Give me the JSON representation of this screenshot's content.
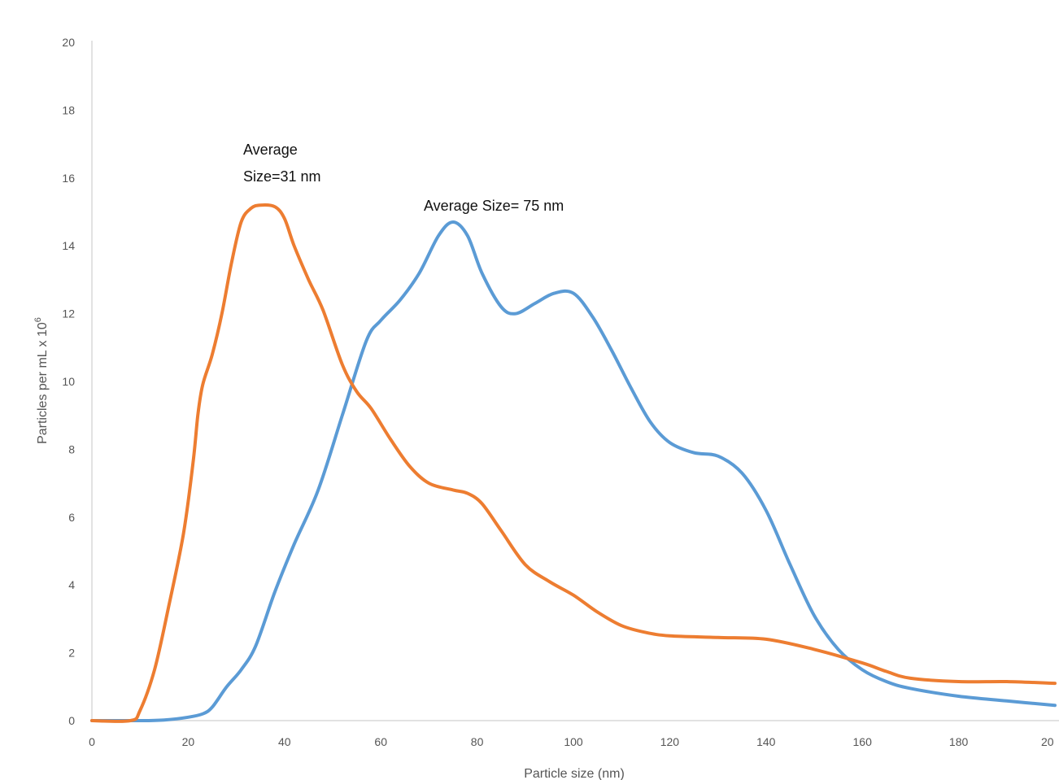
{
  "chart_data": {
    "type": "line",
    "title": "",
    "xlabel": "Particle size (nm)",
    "ylabel": "Particles per mL x 10",
    "ylabel_sup": "6",
    "xlim": [
      0,
      200
    ],
    "ylim": [
      0,
      20
    ],
    "x_ticks": [
      "0",
      "20",
      "40",
      "60",
      "80",
      "100",
      "120",
      "140",
      "160",
      "180",
      "20"
    ],
    "y_ticks": [
      "0",
      "2",
      "4",
      "6",
      "8",
      "10",
      "12",
      "14",
      "16",
      "18",
      "20"
    ],
    "grid": false,
    "series": [
      {
        "color": "#5B9BD5",
        "points": [
          [
            0,
            0
          ],
          [
            10,
            0
          ],
          [
            15,
            0.02
          ],
          [
            20,
            0.1
          ],
          [
            23,
            0.2
          ],
          [
            25,
            0.4
          ],
          [
            28,
            1.0
          ],
          [
            31,
            1.5
          ],
          [
            34,
            2.2
          ],
          [
            38,
            3.8
          ],
          [
            42,
            5.2
          ],
          [
            47,
            6.8
          ],
          [
            52,
            9.0
          ],
          [
            57,
            11.2
          ],
          [
            60,
            11.8
          ],
          [
            64,
            12.4
          ],
          [
            68,
            13.2
          ],
          [
            72,
            14.3
          ],
          [
            75,
            14.7
          ],
          [
            78,
            14.3
          ],
          [
            81,
            13.2
          ],
          [
            85,
            12.2
          ],
          [
            88,
            12.0
          ],
          [
            92,
            12.3
          ],
          [
            96,
            12.6
          ],
          [
            100,
            12.6
          ],
          [
            104,
            11.9
          ],
          [
            108,
            10.9
          ],
          [
            112,
            9.8
          ],
          [
            116,
            8.8
          ],
          [
            120,
            8.2
          ],
          [
            125,
            7.9
          ],
          [
            130,
            7.8
          ],
          [
            135,
            7.3
          ],
          [
            140,
            6.2
          ],
          [
            145,
            4.6
          ],
          [
            150,
            3.1
          ],
          [
            155,
            2.1
          ],
          [
            160,
            1.5
          ],
          [
            165,
            1.15
          ],
          [
            170,
            0.95
          ],
          [
            180,
            0.72
          ],
          [
            190,
            0.58
          ],
          [
            200,
            0.45
          ]
        ]
      },
      {
        "color": "#ED7D31",
        "points": [
          [
            0,
            0
          ],
          [
            8,
            0
          ],
          [
            10,
            0.3
          ],
          [
            13,
            1.5
          ],
          [
            16,
            3.4
          ],
          [
            19,
            5.5
          ],
          [
            21,
            7.6
          ],
          [
            22,
            9.0
          ],
          [
            23,
            9.9
          ],
          [
            25,
            10.8
          ],
          [
            27,
            12.0
          ],
          [
            29,
            13.5
          ],
          [
            31,
            14.7
          ],
          [
            33,
            15.1
          ],
          [
            35,
            15.2
          ],
          [
            38,
            15.15
          ],
          [
            40,
            14.8
          ],
          [
            42,
            14.0
          ],
          [
            45,
            13.0
          ],
          [
            48,
            12.1
          ],
          [
            52,
            10.5
          ],
          [
            55,
            9.7
          ],
          [
            58,
            9.2
          ],
          [
            62,
            8.3
          ],
          [
            66,
            7.5
          ],
          [
            70,
            7.0
          ],
          [
            75,
            6.8
          ],
          [
            78,
            6.7
          ],
          [
            81,
            6.4
          ],
          [
            85,
            5.6
          ],
          [
            90,
            4.6
          ],
          [
            95,
            4.1
          ],
          [
            100,
            3.7
          ],
          [
            105,
            3.2
          ],
          [
            110,
            2.8
          ],
          [
            115,
            2.6
          ],
          [
            120,
            2.5
          ],
          [
            130,
            2.45
          ],
          [
            140,
            2.4
          ],
          [
            150,
            2.1
          ],
          [
            160,
            1.7
          ],
          [
            165,
            1.45
          ],
          [
            170,
            1.25
          ],
          [
            180,
            1.15
          ],
          [
            190,
            1.15
          ],
          [
            200,
            1.1
          ]
        ]
      }
    ],
    "annotations": [
      {
        "lines": [
          "Average",
          "Size=31 nm"
        ],
        "x": 31,
        "y": 16.5
      },
      {
        "lines": [
          "Average Size= 75 nm"
        ],
        "x": 68,
        "y": 15.0
      }
    ]
  }
}
